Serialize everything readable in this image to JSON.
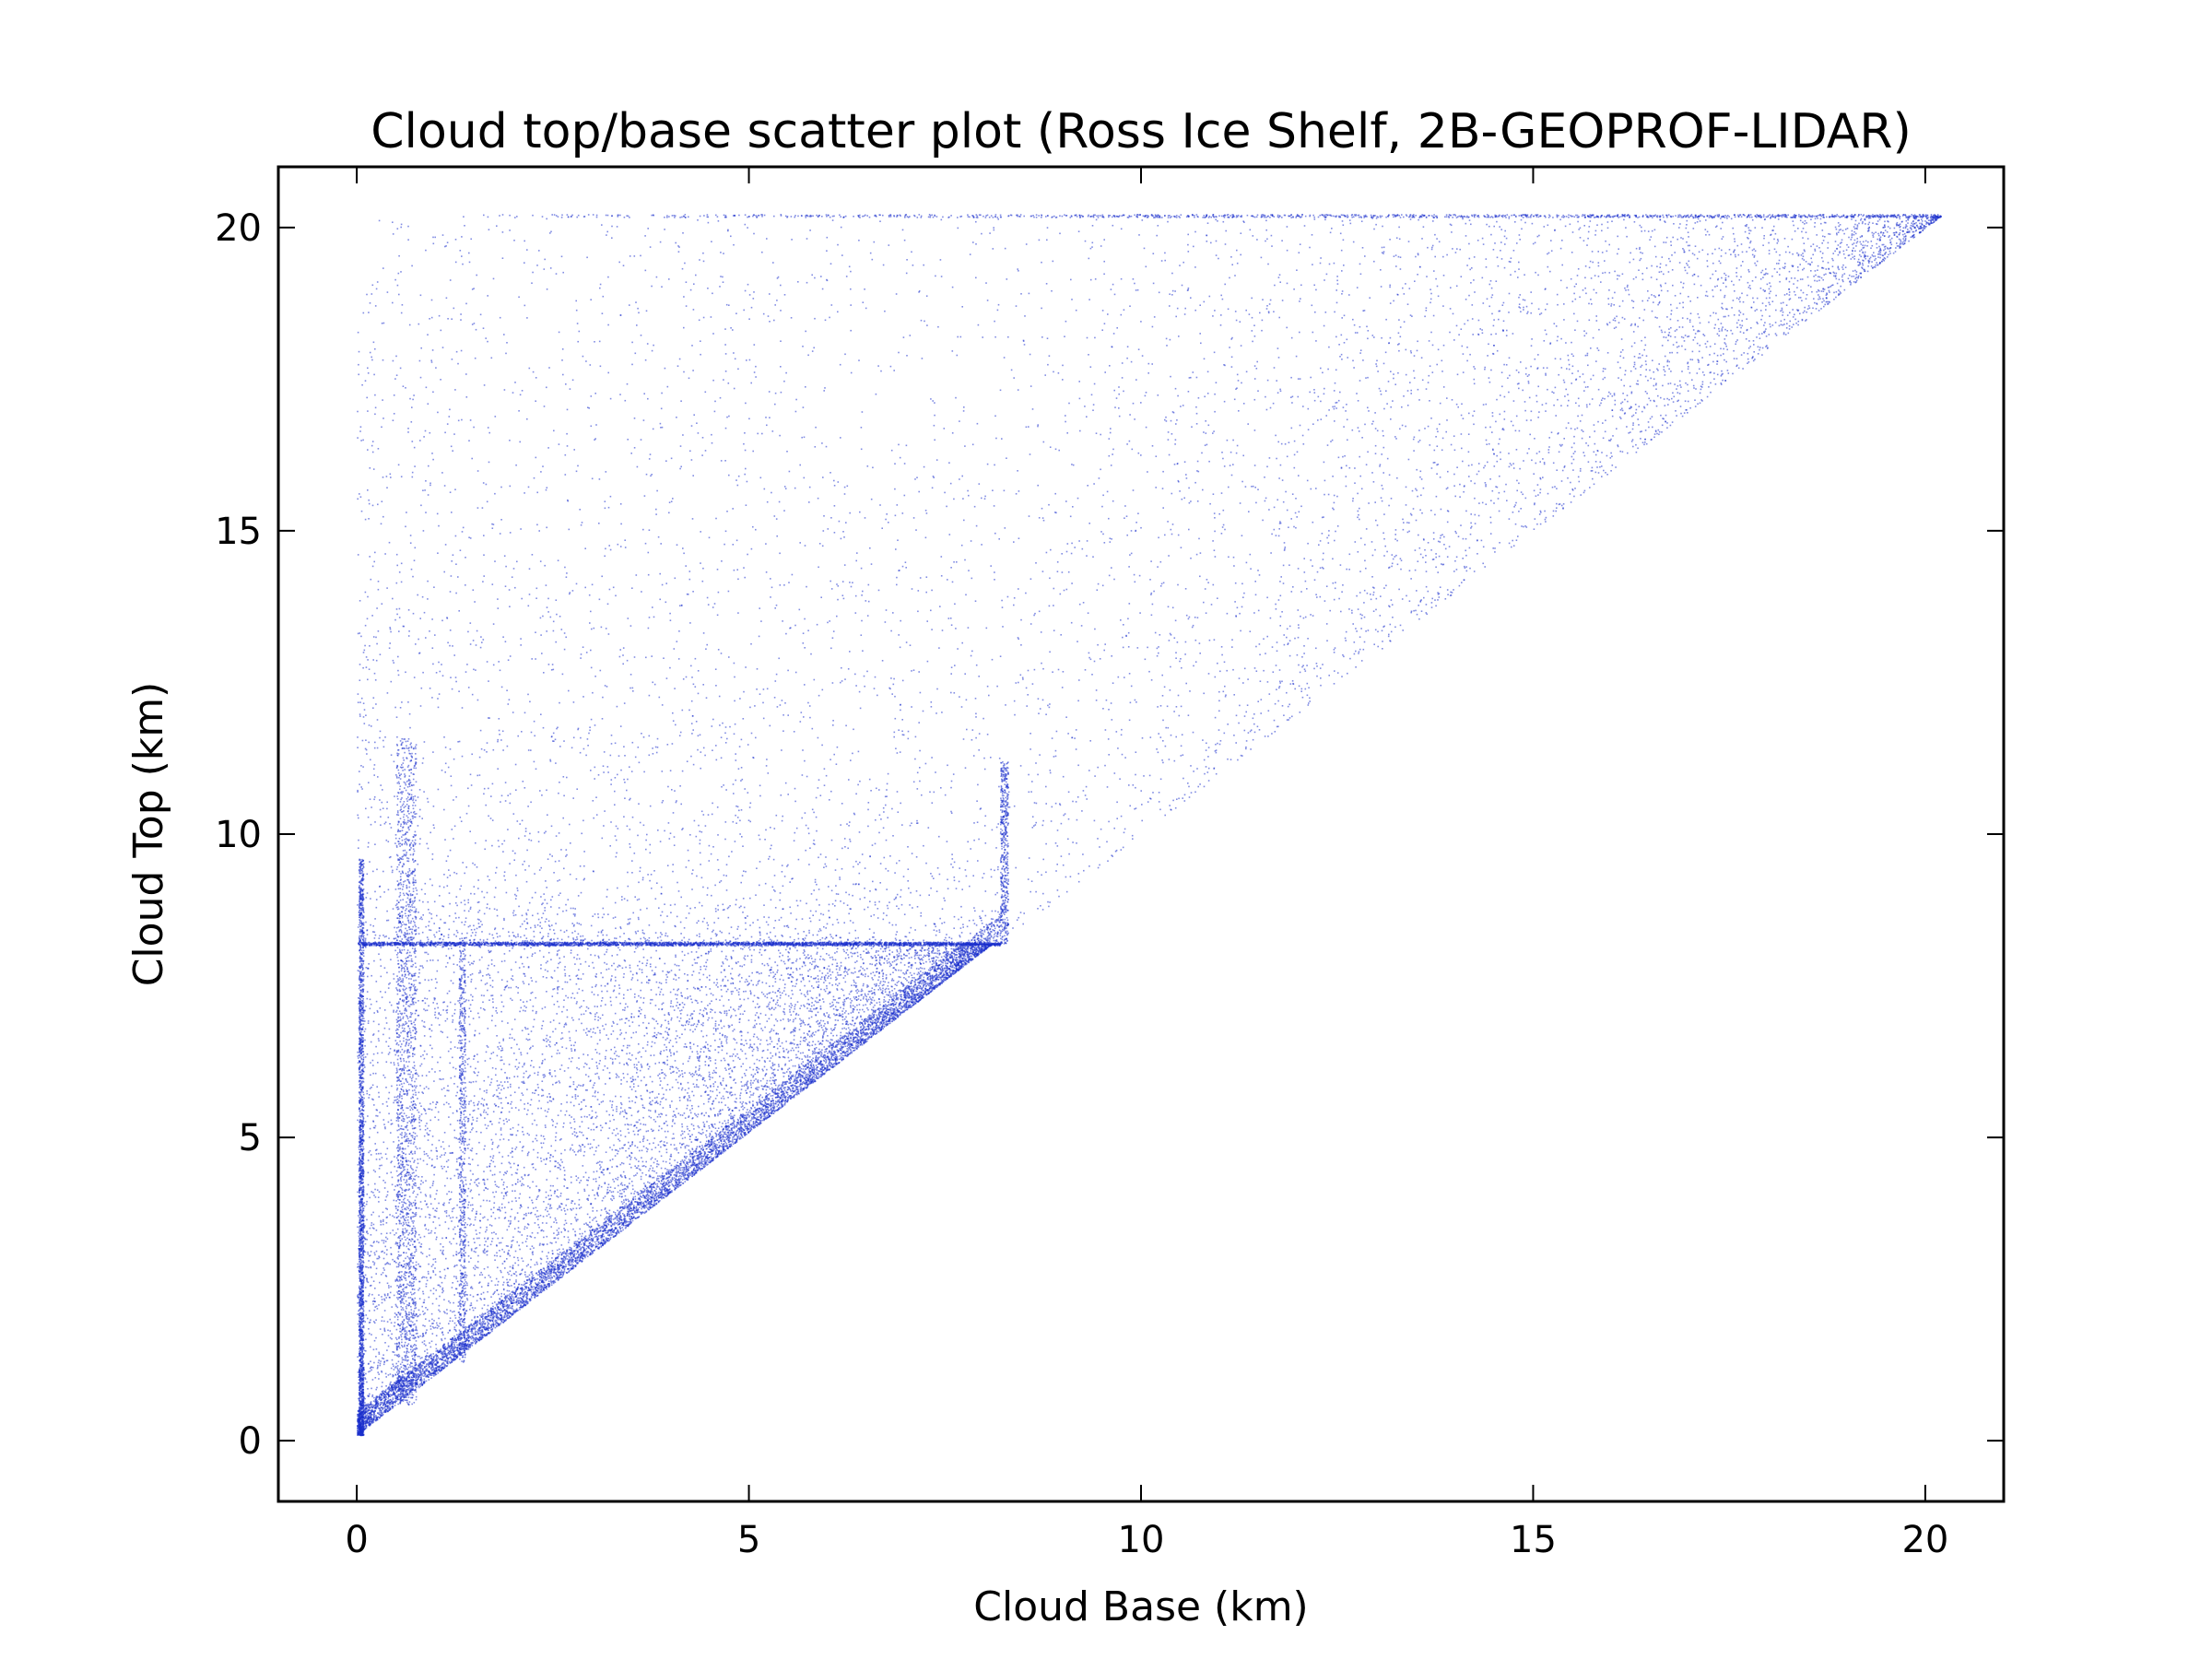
{
  "chart_data": {
    "type": "scatter",
    "title": "Cloud top/base scatter plot (Ross Ice Shelf, 2B-GEOPROF-LIDAR)",
    "xlabel": "Cloud Base (km)",
    "ylabel": "Cloud Top (km)",
    "xlim": [
      -1,
      21
    ],
    "ylim": [
      -1,
      21
    ],
    "xticks": [
      0,
      5,
      10,
      15,
      20
    ],
    "yticks": [
      0,
      5,
      10,
      15,
      20
    ],
    "xtick_labels": [
      "0",
      "5",
      "10",
      "15",
      "20"
    ],
    "ytick_labels": [
      "0",
      "5",
      "10",
      "15",
      "20"
    ],
    "grid": false,
    "legend": "none",
    "marker_color": "#1a2ecc",
    "notable_features": {
      "top_cap_km": 20.2,
      "dense_band_top_km": 8.2,
      "dense_band_base_max_km": 8.2,
      "vertical_streak_base_km": [
        0.5,
        1.3,
        8.2
      ]
    },
    "series": [
      {
        "values": [
          [
            0.05,
            0.1
          ],
          [
            0.1,
            0.3
          ],
          [
            0.2,
            0.6
          ],
          [
            0.5,
            1.0
          ],
          [
            1.0,
            1.6
          ],
          [
            1.5,
            2.2
          ],
          [
            2.0,
            2.6
          ],
          [
            3.0,
            3.8
          ],
          [
            4.0,
            4.7
          ],
          [
            5.0,
            5.6
          ],
          [
            6.0,
            6.6
          ],
          [
            7.0,
            7.5
          ],
          [
            8.0,
            8.2
          ],
          [
            0.1,
            8.2
          ],
          [
            2.0,
            8.2
          ],
          [
            4.0,
            8.2
          ],
          [
            6.0,
            8.2
          ],
          [
            0.6,
            11.0
          ],
          [
            0.1,
            14.0
          ],
          [
            0.05,
            16.5
          ],
          [
            8.3,
            11.0
          ],
          [
            9.0,
            9.5
          ],
          [
            10.0,
            10.5
          ],
          [
            12.0,
            12.8
          ],
          [
            14.0,
            15.0
          ],
          [
            16.0,
            17.0
          ],
          [
            18.0,
            19.0
          ],
          [
            20.0,
            20.2
          ],
          [
            8.5,
            20.2
          ],
          [
            12.0,
            20.2
          ],
          [
            15.0,
            20.2
          ],
          [
            17.0,
            20.2
          ],
          [
            19.0,
            20.2
          ]
        ]
      }
    ]
  }
}
